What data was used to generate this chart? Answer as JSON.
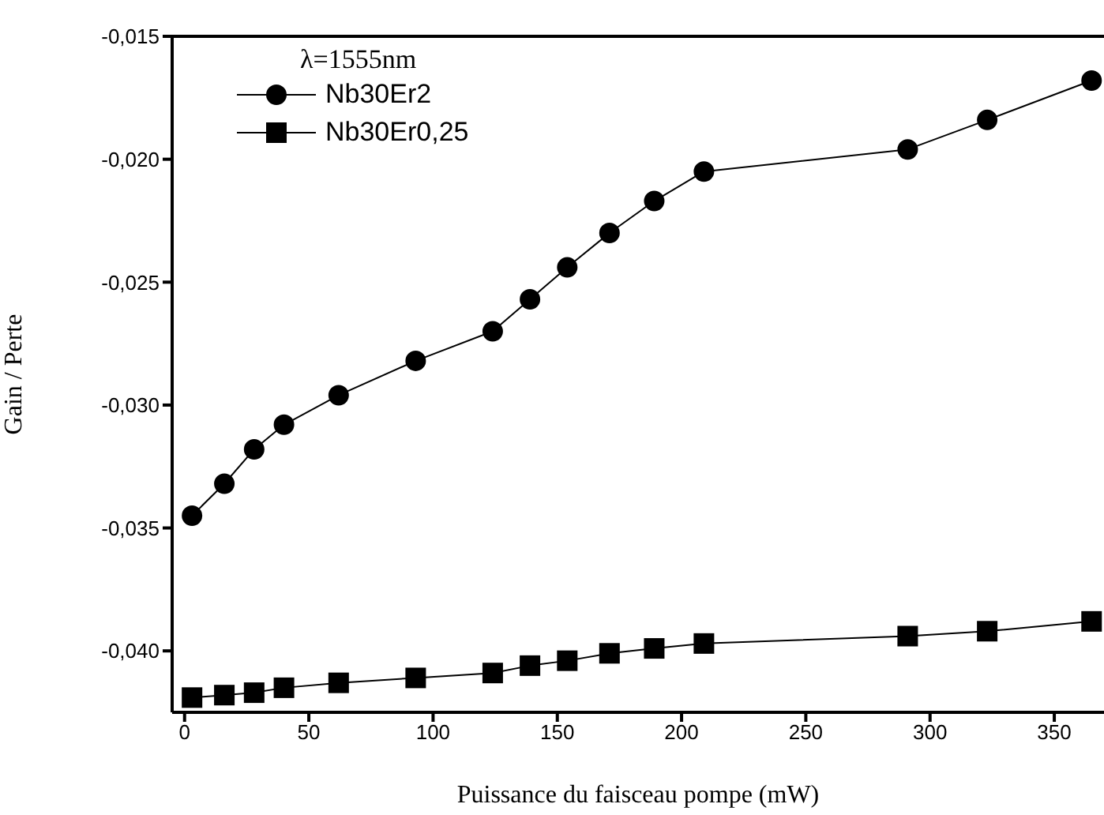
{
  "chart_data": {
    "type": "line",
    "xlabel": "Puissance du faisceau pompe (mW)",
    "ylabel": "Gain / Perte",
    "legend_title": "λ=1555nm",
    "legend": "top left",
    "grid": false,
    "xlim": [
      -5,
      370
    ],
    "xticks": [
      0,
      50,
      100,
      150,
      200,
      250,
      300,
      350
    ],
    "ylim": [
      -0.0425,
      -0.015
    ],
    "yticks": [
      {
        "value": -0.04,
        "label": "-0,040"
      },
      {
        "value": -0.035,
        "label": "-0,035"
      },
      {
        "value": -0.03,
        "label": "-0,030"
      },
      {
        "value": -0.025,
        "label": "-0,025"
      },
      {
        "value": -0.02,
        "label": "-0,020"
      },
      {
        "value": -0.015,
        "label": "-0,015"
      }
    ],
    "x": [
      3,
      16,
      28,
      40,
      62,
      93,
      124,
      139,
      154,
      171,
      189,
      209,
      291,
      323,
      365
    ],
    "series": [
      {
        "name": "Nb30Er2",
        "color": "#000000",
        "marker": "circle",
        "values": [
          -0.0345,
          -0.0332,
          -0.0318,
          -0.0308,
          -0.0296,
          -0.0282,
          -0.027,
          -0.0257,
          -0.0244,
          -0.023,
          -0.0217,
          -0.0205,
          -0.0196,
          -0.0184,
          -0.0168
        ]
      },
      {
        "name": "Nb30Er0,25",
        "color": "#000000",
        "marker": "square",
        "values": [
          -0.0419,
          -0.0418,
          -0.0417,
          -0.0415,
          -0.0413,
          -0.0411,
          -0.0409,
          -0.0406,
          -0.0404,
          -0.0401,
          -0.0399,
          -0.0397,
          -0.0394,
          -0.0392,
          -0.0388
        ]
      }
    ]
  }
}
